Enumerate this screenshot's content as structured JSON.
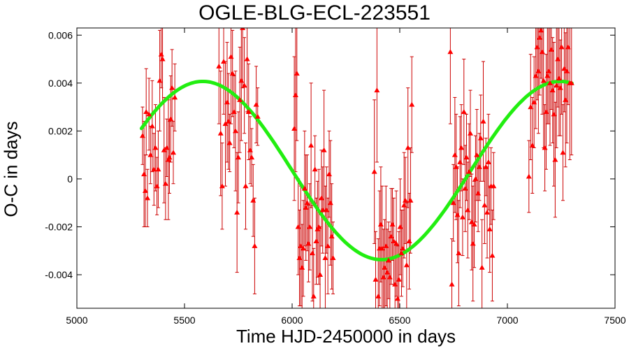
{
  "chart_data": {
    "type": "scatter",
    "title": "OGLE-BLG-ECL-223551",
    "xlabel": "Time HJD-2450000 in days",
    "ylabel": "O-C in days",
    "xlim": [
      5000,
      7500
    ],
    "ylim": [
      -0.0054,
      0.0063
    ],
    "x_ticks": [
      5000,
      5500,
      6000,
      6500,
      7000,
      7500
    ],
    "x_tick_labels": [
      "5000",
      "5500",
      "6000",
      "6500",
      "7000",
      "7500"
    ],
    "y_ticks": [
      -0.004,
      -0.002,
      0,
      0.002,
      0.004,
      0.006
    ],
    "y_tick_labels": [
      "-0.004",
      "-0.002",
      "0",
      "0.002",
      "0.004",
      "0.006"
    ],
    "grid": false,
    "colors": {
      "points": "#ff0000",
      "error_bars": "#cc0000",
      "fit": "#22ee11"
    },
    "series": [
      {
        "kind": "points_with_error_bars",
        "points": [
          [
            5305,
            0.0018,
            0.0012
          ],
          [
            5312,
            0.0002,
            0.0022
          ],
          [
            5318,
            -0.0005,
            0.0015
          ],
          [
            5322,
            0.0028,
            0.0018
          ],
          [
            5328,
            -0.0008,
            0.0012
          ],
          [
            5335,
            0.0027,
            0.0015
          ],
          [
            5342,
            0.001,
            0.0012
          ],
          [
            5350,
            0.0022,
            0.0019
          ],
          [
            5358,
            0.0004,
            0.0015
          ],
          [
            5365,
            0.0013,
            0.0018
          ],
          [
            5372,
            -0.0003,
            0.0012
          ],
          [
            5378,
            0.0004,
            0.0016
          ],
          [
            5385,
            0.0041,
            0.0021
          ],
          [
            5392,
            0.0052,
            0.0014
          ],
          [
            5398,
            0.005,
            0.0018
          ],
          [
            5405,
            0.0012,
            0.0022
          ],
          [
            5412,
            -0.0002,
            0.0015
          ],
          [
            5418,
            0.0013,
            0.0012
          ],
          [
            5425,
            0.0008,
            0.0025
          ],
          [
            5430,
            0.0009,
            0.0015
          ],
          [
            5436,
            0.0025,
            0.0018
          ],
          [
            5442,
            0.0038,
            0.0016
          ],
          [
            5448,
            0.0011,
            0.0013
          ],
          [
            5455,
            0.0034,
            0.0014
          ],
          [
            5660,
            0.0047,
            0.0024
          ],
          [
            5668,
            0.0019,
            0.0026
          ],
          [
            5675,
            -0.0003,
            0.0018
          ],
          [
            5682,
            0.0049,
            0.0022
          ],
          [
            5690,
            0.0023,
            0.0026
          ],
          [
            5698,
            0.0032,
            0.0025
          ],
          [
            5704,
            0.0024,
            0.002
          ],
          [
            5710,
            0.0015,
            0.0012
          ],
          [
            5716,
            0.0051,
            0.0028
          ],
          [
            5723,
            0.0044,
            0.0018
          ],
          [
            5730,
            0.0028,
            0.0015
          ],
          [
            5737,
            0.002,
            0.0025
          ],
          [
            5744,
            -0.0014,
            0.0025
          ],
          [
            5750,
            0.0009,
            0.0019
          ],
          [
            5757,
            0.0033,
            0.0022
          ],
          [
            5764,
            0.0041,
            0.0025
          ],
          [
            5770,
            0.0063,
            0.0025
          ],
          [
            5778,
            0.0039,
            0.002
          ],
          [
            5784,
            -0.0003,
            0.0018
          ],
          [
            5791,
            0.005,
            0.0022
          ],
          [
            5798,
            0.0028,
            0.002
          ],
          [
            5805,
            0.0012,
            0.0014
          ],
          [
            5812,
            0.0009,
            0.0012
          ],
          [
            5819,
            -0.0009,
            0.0015
          ],
          [
            5826,
            -0.0028,
            0.002
          ],
          [
            5833,
            0.0031,
            0.0016
          ],
          [
            5840,
            0.0026,
            0.0012
          ],
          [
            6010,
            0.0021,
            0.003
          ],
          [
            6016,
            0.0035,
            0.0032
          ],
          [
            6022,
            0.0044,
            0.0028
          ],
          [
            6028,
            -0.002,
            0.002
          ],
          [
            6034,
            -0.0033,
            0.002
          ],
          [
            6040,
            -0.0028,
            0.0025
          ],
          [
            6046,
            -0.0037,
            0.0018
          ],
          [
            6052,
            -0.0029,
            0.002
          ],
          [
            6058,
            -0.0004,
            0.0024
          ],
          [
            6064,
            -0.0012,
            0.0022
          ],
          [
            6070,
            -0.001,
            0.002
          ],
          [
            6076,
            -0.0027,
            0.0016
          ],
          [
            6082,
            -0.002,
            0.0018
          ],
          [
            6088,
            0.0014,
            0.0026
          ],
          [
            6094,
            -0.0031,
            0.002
          ],
          [
            6100,
            -0.0049,
            0.002
          ],
          [
            6106,
            0.0004,
            0.0014
          ],
          [
            6112,
            -0.0026,
            0.0018
          ],
          [
            6118,
            -0.0021,
            0.002
          ],
          [
            6124,
            -0.002,
            0.0024
          ],
          [
            6130,
            -0.004,
            0.002
          ],
          [
            6136,
            -0.0008,
            0.002
          ],
          [
            6142,
            -0.0013,
            0.0018
          ],
          [
            6148,
            0.0012,
            0.0025
          ],
          [
            6154,
            -0.0033,
            0.003
          ],
          [
            6160,
            -0.0013,
            0.0018
          ],
          [
            6166,
            -0.0028,
            0.002
          ],
          [
            6172,
            0.0002,
            0.0018
          ],
          [
            6178,
            -0.001,
            0.0026
          ],
          [
            6184,
            -0.0024,
            0.0022
          ],
          [
            6190,
            -0.0033,
            0.0015
          ],
          [
            6382,
            0.0003,
            0.003
          ],
          [
            6388,
            -0.0042,
            0.002
          ],
          [
            6394,
            0.0037,
            0.003
          ],
          [
            6400,
            -0.0049,
            0.0024
          ],
          [
            6406,
            -0.0029,
            0.0024
          ],
          [
            6412,
            -0.0019,
            0.0024
          ],
          [
            6418,
            -0.0029,
            0.0026
          ],
          [
            6424,
            -0.0041,
            0.002
          ],
          [
            6430,
            -0.0037,
            0.002
          ],
          [
            6436,
            -0.0028,
            0.0025
          ],
          [
            6442,
            -0.0039,
            0.0018
          ],
          [
            6448,
            -0.0034,
            0.0016
          ],
          [
            6454,
            -0.0041,
            0.0019
          ],
          [
            6460,
            -0.0024,
            0.002
          ],
          [
            6466,
            -0.0019,
            0.0015
          ],
          [
            6472,
            -0.0026,
            0.0018
          ],
          [
            6478,
            -0.0044,
            0.0018
          ],
          [
            6484,
            -0.0027,
            0.0022
          ],
          [
            6490,
            -0.005,
            0.0022
          ],
          [
            6496,
            -0.0042,
            0.002
          ],
          [
            6502,
            -0.002,
            0.002
          ],
          [
            6508,
            -0.0031,
            0.0018
          ],
          [
            6514,
            -0.0029,
            0.0016
          ],
          [
            6520,
            -0.0011,
            0.0022
          ],
          [
            6526,
            -0.0009,
            0.0018
          ],
          [
            6532,
            -0.0036,
            0.0026
          ],
          [
            6538,
            0.0013,
            0.0025
          ],
          [
            6544,
            -0.0026,
            0.002
          ],
          [
            6550,
            -0.0009,
            0.0022
          ],
          [
            6556,
            0.0031,
            0.002
          ],
          [
            6735,
            0.0053,
            0.003
          ],
          [
            6742,
            -0.0044,
            0.0019
          ],
          [
            6749,
            -0.001,
            0.0016
          ],
          [
            6756,
            0.001,
            0.0024
          ],
          [
            6762,
            0.0005,
            0.0022
          ],
          [
            6768,
            -0.0015,
            0.002
          ],
          [
            6774,
            -0.0031,
            0.0022
          ],
          [
            6780,
            0.0007,
            0.0019
          ],
          [
            6786,
            0.0013,
            0.0018
          ],
          [
            6792,
            -0.0016,
            0.0016
          ],
          [
            6798,
            0.0028,
            0.0022
          ],
          [
            6804,
            -0.0004,
            0.0018
          ],
          [
            6810,
            0.0009,
            0.0018
          ],
          [
            6816,
            -0.0013,
            0.002
          ],
          [
            6822,
            0.0003,
            0.002
          ],
          [
            6828,
            0.0019,
            0.0018
          ],
          [
            6834,
            -0.0018,
            0.002
          ],
          [
            6840,
            -0.0027,
            0.0024
          ],
          [
            6846,
            -0.0019,
            0.0018
          ],
          [
            6852,
            0.0,
            0.0018
          ],
          [
            6858,
            0.001,
            0.0019
          ],
          [
            6864,
            -0.0006,
            0.0016
          ],
          [
            6870,
            0.0005,
            0.0014
          ],
          [
            6876,
            0.0017,
            0.0018
          ],
          [
            6882,
            -0.0037,
            0.002
          ],
          [
            6888,
            0.0024,
            0.0025
          ],
          [
            6894,
            -0.0011,
            0.0016
          ],
          [
            6900,
            0.0005,
            0.0012
          ],
          [
            6906,
            -0.0014,
            0.0019
          ],
          [
            6912,
            0.0007,
            0.002
          ],
          [
            6918,
            -0.0021,
            0.0018
          ],
          [
            6924,
            -0.0003,
            0.0016
          ],
          [
            6930,
            -0.0032,
            0.0019
          ],
          [
            6936,
            -0.0003,
            0.0014
          ],
          [
            7100,
            0.0001,
            0.0015
          ],
          [
            7108,
            0.003,
            0.0022
          ],
          [
            7116,
            0.0014,
            0.002
          ],
          [
            7124,
            0.0032,
            0.0019
          ],
          [
            7132,
            0.0043,
            0.0022
          ],
          [
            7138,
            0.0055,
            0.0022
          ],
          [
            7144,
            0.0045,
            0.0026
          ],
          [
            7150,
            0.0059,
            0.0024
          ],
          [
            7156,
            0.0062,
            0.002
          ],
          [
            7162,
            0.0053,
            0.0026
          ],
          [
            7168,
            0.0041,
            0.0028
          ],
          [
            7174,
            0.0013,
            0.0018
          ],
          [
            7180,
            0.0028,
            0.0024
          ],
          [
            7186,
            0.0043,
            0.002
          ],
          [
            7192,
            0.0045,
            0.0022
          ],
          [
            7198,
            0.004,
            0.0026
          ],
          [
            7204,
            0.0054,
            0.0025
          ],
          [
            7210,
            0.0037,
            0.0022
          ],
          [
            7216,
            0.0027,
            0.003
          ],
          [
            7222,
            0.0008,
            0.0024
          ],
          [
            7228,
            0.0039,
            0.0026
          ],
          [
            7234,
            0.005,
            0.002
          ],
          [
            7240,
            0.0042,
            0.0024
          ],
          [
            7246,
            0.0038,
            0.002
          ],
          [
            7252,
            0.0055,
            0.0028
          ],
          [
            7258,
            0.0011,
            0.002
          ],
          [
            7264,
            0.0046,
            0.0018
          ],
          [
            7270,
            0.0033,
            0.0028
          ],
          [
            7276,
            0.0045,
            0.003
          ],
          [
            7282,
            0.0055,
            0.0024
          ],
          [
            7290,
            0.004,
            0.0032
          ],
          [
            7298,
            0.004,
            0.003
          ]
        ]
      },
      {
        "kind": "fit_curve",
        "model": "sinusoid",
        "x_range": [
          5300,
          7300
        ],
        "offset": 0.00035,
        "amplitude": 0.00372,
        "period": 1660,
        "peak_at": 5585
      }
    ]
  }
}
